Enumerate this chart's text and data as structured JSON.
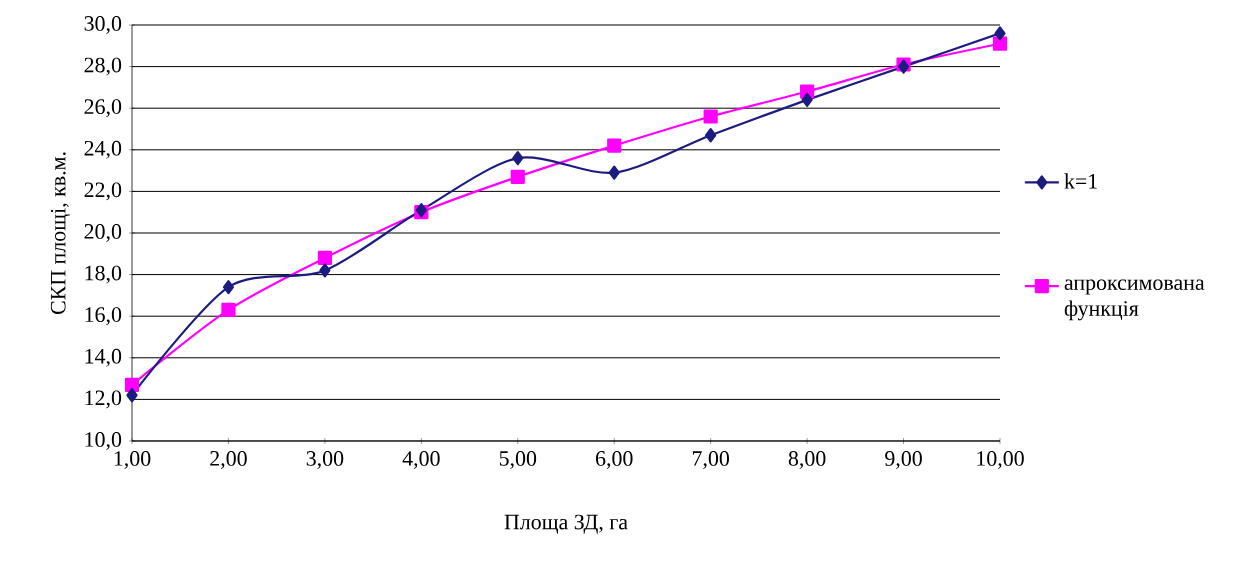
{
  "chart_data": {
    "type": "line",
    "xlabel": "Площа ЗД, га",
    "ylabel": "СКП площі, кв.м.",
    "categories": [
      "1,00",
      "2,00",
      "3,00",
      "4,00",
      "5,00",
      "6,00",
      "7,00",
      "8,00",
      "9,00",
      "10,00"
    ],
    "series": [
      {
        "name": "k=1",
        "color": "#1c1c80",
        "marker": "diamond",
        "values": [
          12.2,
          17.4,
          18.2,
          21.1,
          23.6,
          22.9,
          24.7,
          26.4,
          28.0,
          29.6
        ]
      },
      {
        "name": "апроксимована функція",
        "color": "#ff00ff",
        "marker": "square",
        "values": [
          12.7,
          16.3,
          18.8,
          21.0,
          22.7,
          24.2,
          25.6,
          26.8,
          28.1,
          29.1
        ]
      }
    ],
    "ylim": [
      10,
      30
    ],
    "yticks": [
      {
        "value": 10,
        "label": "10,0"
      },
      {
        "value": 12,
        "label": "12,0"
      },
      {
        "value": 14,
        "label": "14,0"
      },
      {
        "value": 16,
        "label": "16,0"
      },
      {
        "value": 18,
        "label": "18,0"
      },
      {
        "value": 20,
        "label": "20,0"
      },
      {
        "value": 22,
        "label": "22,0"
      },
      {
        "value": 24,
        "label": "24,0"
      },
      {
        "value": 26,
        "label": "26,0"
      },
      {
        "value": 28,
        "label": "28,0"
      },
      {
        "value": 30,
        "label": "30,0"
      }
    ],
    "grid": "y",
    "legend": "right",
    "line_style": "solid"
  }
}
